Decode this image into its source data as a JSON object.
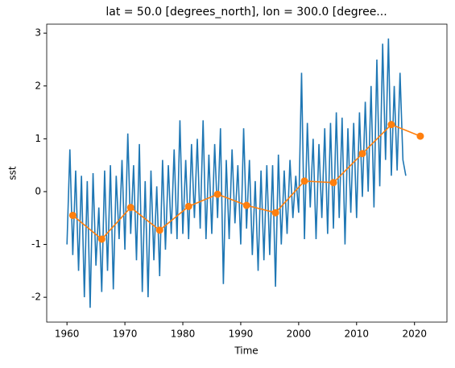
{
  "chart_data": {
    "type": "line",
    "title": "lat = 50.0 [degrees_north], lon = 300.0 [degree...",
    "xlabel": "Time",
    "ylabel": "sst",
    "xlim": [
      1956.5,
      2025.6
    ],
    "ylim": [
      -2.47,
      3.17
    ],
    "xticks": [
      1960,
      1970,
      1980,
      1990,
      2000,
      2010,
      2020
    ],
    "yticks": [
      -2,
      -1,
      0,
      1,
      2,
      3
    ],
    "series": [
      {
        "color": "#1f77b4",
        "marker": false,
        "x": [
          1960,
          1960.5,
          1961,
          1961.5,
          1962,
          1962.5,
          1963,
          1963.5,
          1964,
          1964.5,
          1965,
          1965.5,
          1966,
          1966.5,
          1967,
          1967.5,
          1968,
          1968.5,
          1969,
          1969.5,
          1970,
          1970.5,
          1971,
          1971.5,
          1972,
          1972.5,
          1973,
          1973.5,
          1974,
          1974.5,
          1975,
          1975.5,
          1976,
          1976.5,
          1977,
          1977.5,
          1978,
          1978.5,
          1979,
          1979.5,
          1980,
          1980.5,
          1981,
          1981.5,
          1982,
          1982.5,
          1983,
          1983.5,
          1984,
          1984.5,
          1985,
          1985.5,
          1986,
          1986.5,
          1987,
          1987.5,
          1988,
          1988.5,
          1989,
          1989.5,
          1990,
          1990.5,
          1991,
          1991.5,
          1992,
          1992.5,
          1993,
          1993.5,
          1994,
          1994.5,
          1995,
          1995.5,
          1996,
          1996.5,
          1997,
          1997.5,
          1998,
          1998.5,
          1999,
          1999.5,
          2000,
          2000.5,
          2001,
          2001.5,
          2002,
          2002.5,
          2003,
          2003.5,
          2004,
          2004.5,
          2005,
          2005.5,
          2006,
          2006.5,
          2007,
          2007.5,
          2008,
          2008.5,
          2009,
          2009.5,
          2010,
          2010.5,
          2011,
          2011.5,
          2012,
          2012.5,
          2013,
          2013.5,
          2014,
          2014.5,
          2015,
          2015.5,
          2016,
          2016.5,
          2017,
          2017.5,
          2018,
          2018.5
        ],
        "values": [
          -1.0,
          0.8,
          -1.2,
          0.4,
          -1.5,
          0.3,
          -2.0,
          0.2,
          -2.2,
          0.35,
          -1.4,
          -0.3,
          -1.9,
          0.4,
          -1.5,
          0.5,
          -1.85,
          0.3,
          -0.9,
          0.6,
          -1.1,
          1.1,
          -0.8,
          0.5,
          -1.3,
          0.9,
          -1.9,
          0.2,
          -2.0,
          0.4,
          -1.3,
          0.1,
          -1.6,
          0.6,
          -1.1,
          0.5,
          -0.8,
          0.8,
          -0.9,
          1.35,
          -0.8,
          0.6,
          -0.9,
          0.9,
          -0.5,
          1.0,
          -0.7,
          1.35,
          -0.9,
          0.7,
          -0.8,
          0.9,
          -0.5,
          1.2,
          -1.75,
          0.6,
          -0.9,
          0.8,
          -0.6,
          0.5,
          -1.0,
          1.2,
          -0.7,
          0.6,
          -1.2,
          0.2,
          -1.5,
          0.4,
          -1.3,
          0.5,
          -1.2,
          0.5,
          -1.8,
          0.7,
          -1.0,
          0.4,
          -0.8,
          0.6,
          -0.5,
          0.3,
          -0.4,
          2.25,
          -0.9,
          1.3,
          -0.3,
          1.0,
          -0.9,
          0.9,
          -0.5,
          1.2,
          -0.8,
          1.3,
          -0.7,
          1.5,
          -0.5,
          1.4,
          -1.0,
          1.2,
          -0.4,
          1.3,
          -0.5,
          1.5,
          -0.1,
          1.7,
          0.0,
          2.0,
          -0.3,
          2.5,
          0.1,
          2.8,
          0.6,
          2.9,
          0.3,
          2.0,
          0.4,
          2.25,
          0.6,
          0.3
        ]
      },
      {
        "color": "#ff7f0e",
        "marker": true,
        "x": [
          1961,
          1966,
          1971,
          1976,
          1981,
          1986,
          1991,
          1996,
          2001,
          2006,
          2011,
          2016,
          2021
        ],
        "values": [
          -0.45,
          -0.9,
          -0.3,
          -0.73,
          -0.28,
          -0.05,
          -0.26,
          -0.4,
          0.2,
          0.17,
          0.72,
          1.27,
          1.05
        ]
      }
    ]
  }
}
